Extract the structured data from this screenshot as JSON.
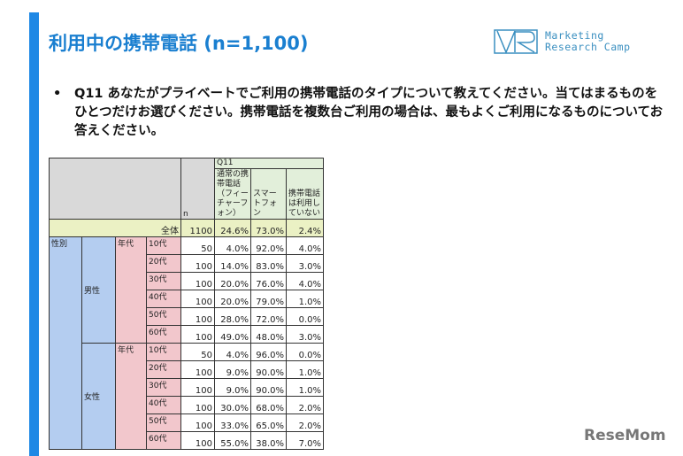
{
  "header": {
    "title": "利用中の携帯電話 (n=1,100)",
    "logo": {
      "line1": "Marketing",
      "line2": "Research Camp"
    }
  },
  "question": {
    "bullet": "•",
    "text": "Q11 あなたがプライベートでご利用の携帯電話のタイプについて教えてください。当てはまるものをひとつだけお選びください。携帯電話を複数台ご利用の場合は、最もよくご利用になるものについてお答えください。"
  },
  "table": {
    "q_label": "Q11",
    "n_label": "n",
    "columns": [
      "通常の携帯電話（フィーチャーフォン）",
      "スマートフォン",
      "携帯電話は利用していない"
    ],
    "total": {
      "label": "全体",
      "n": "1100",
      "values": [
        "24.6%",
        "73.0%",
        "2.4%"
      ]
    },
    "gender_label": "性別",
    "age_label": "年代",
    "groups": [
      {
        "gender": "男性",
        "rows": [
          {
            "age": "10代",
            "n": "50",
            "values": [
              "4.0%",
              "92.0%",
              "4.0%"
            ]
          },
          {
            "age": "20代",
            "n": "100",
            "values": [
              "14.0%",
              "83.0%",
              "3.0%"
            ]
          },
          {
            "age": "30代",
            "n": "100",
            "values": [
              "20.0%",
              "76.0%",
              "4.0%"
            ]
          },
          {
            "age": "40代",
            "n": "100",
            "values": [
              "20.0%",
              "79.0%",
              "1.0%"
            ]
          },
          {
            "age": "50代",
            "n": "100",
            "values": [
              "28.0%",
              "72.0%",
              "0.0%"
            ]
          },
          {
            "age": "60代",
            "n": "100",
            "values": [
              "49.0%",
              "48.0%",
              "3.0%"
            ]
          }
        ]
      },
      {
        "gender": "女性",
        "rows": [
          {
            "age": "10代",
            "n": "50",
            "values": [
              "4.0%",
              "96.0%",
              "0.0%"
            ]
          },
          {
            "age": "20代",
            "n": "100",
            "values": [
              "9.0%",
              "90.0%",
              "1.0%"
            ]
          },
          {
            "age": "30代",
            "n": "100",
            "values": [
              "9.0%",
              "90.0%",
              "1.0%"
            ]
          },
          {
            "age": "40代",
            "n": "100",
            "values": [
              "30.0%",
              "68.0%",
              "2.0%"
            ]
          },
          {
            "age": "50代",
            "n": "100",
            "values": [
              "33.0%",
              "65.0%",
              "2.0%"
            ]
          },
          {
            "age": "60代",
            "n": "100",
            "values": [
              "55.0%",
              "38.0%",
              "7.0%"
            ]
          }
        ]
      }
    ]
  },
  "watermark": "ReseMom",
  "colors": {
    "accent": "#1e88e5",
    "title": "#1a7fd0",
    "header_gray": "#d9d9d9",
    "header_green": "#e2efda",
    "total": "#ebf1c4",
    "gender": "#b4cdf0",
    "age": "#f2c7cc"
  }
}
